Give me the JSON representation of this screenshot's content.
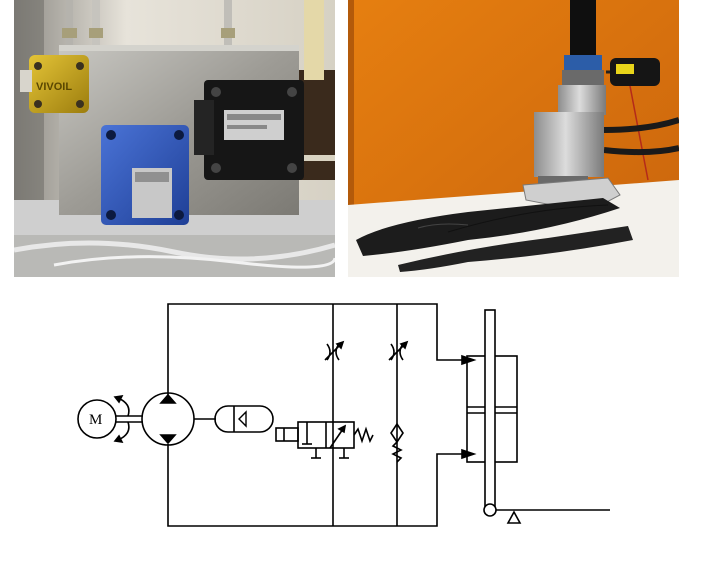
{
  "photos": [
    {
      "name": "hydraulic-valve-manifold-photo"
    },
    {
      "name": "prosthetic-ankle-foot-photo"
    }
  ],
  "schematic": {
    "motor_label": "M",
    "valve_brand_label": "VIVOIL",
    "colors": {
      "line": "#000000",
      "wall": "#ddd8cc",
      "brass": "#c9a51c",
      "steel": "#a6a6a3",
      "blue_valve": "#2f56b8",
      "black_valve": "#161616",
      "orange_wall": "#e07a14",
      "foot_black": "#1c1c1c"
    }
  }
}
